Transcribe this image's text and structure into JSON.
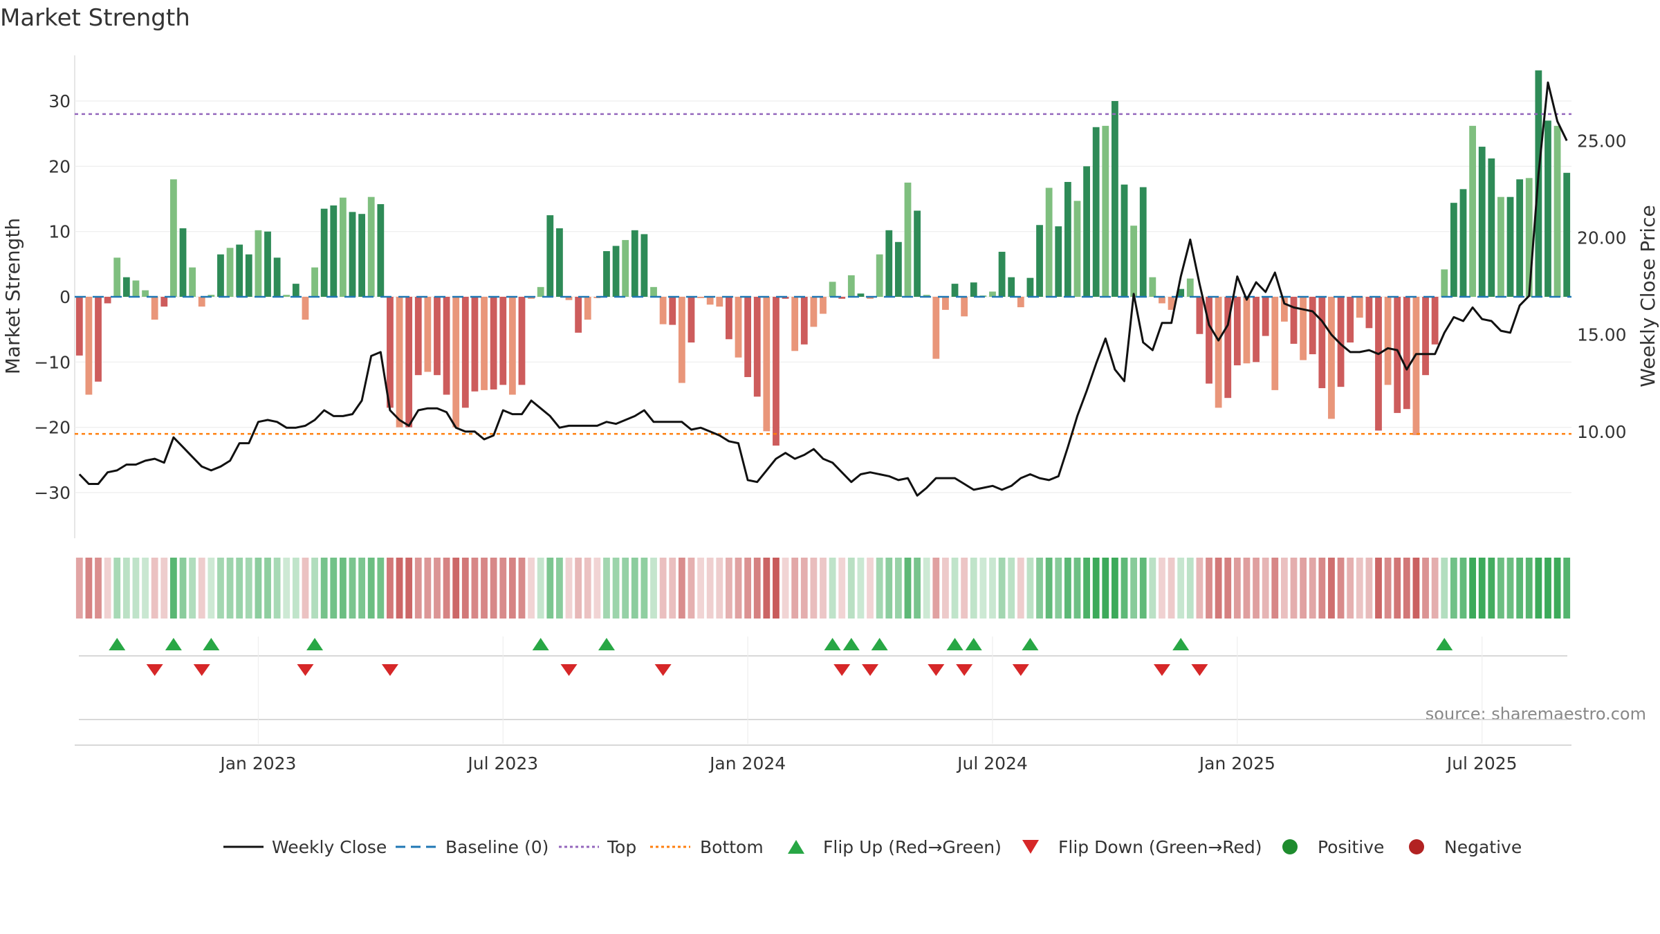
{
  "chart_data": {
    "type": "bar",
    "title": "Market Strength",
    "ylabel": "Market Strength",
    "y2label": "Weekly Close Price",
    "ylim": [
      -37,
      37
    ],
    "y2lim": [
      4.5,
      29.4
    ],
    "yticks": [
      -30,
      -20,
      -10,
      0,
      10,
      20,
      30
    ],
    "ytick_labels": [
      "−30",
      "−20",
      "−10",
      "0",
      "10",
      "20",
      "30"
    ],
    "y2ticks": [
      10,
      15,
      20,
      25
    ],
    "y2tick_labels": [
      "10.00",
      "15.00",
      "20.00",
      "25.00"
    ],
    "top_line": 28,
    "bottom_line": -21,
    "baseline": 0,
    "xticks": [
      {
        "week": 19,
        "label": "Jan 2023"
      },
      {
        "week": 45,
        "label": "Jul 2023"
      },
      {
        "week": 71,
        "label": "Jan 2024"
      },
      {
        "week": 97,
        "label": "Jul 2024"
      },
      {
        "week": 123,
        "label": "Jan 2025"
      },
      {
        "week": 149,
        "label": "Jul 2025"
      }
    ],
    "strength": [
      -9,
      -15,
      -13,
      -1,
      6,
      3,
      2.5,
      1,
      -3.5,
      -1.5,
      18,
      10.5,
      4.5,
      -1.5,
      0.3,
      6.5,
      7.5,
      8,
      6.5,
      10.2,
      10,
      6,
      0.3,
      2,
      -3.5,
      4.5,
      13.5,
      14,
      15.2,
      13,
      12.7,
      15.3,
      14.2,
      -17,
      -20,
      -20,
      -12,
      -11.5,
      -12,
      -15,
      -20,
      -17,
      -14.5,
      -14.3,
      -14.2,
      -13.5,
      -15,
      -13.5,
      -0.3,
      1.5,
      12.5,
      10.5,
      -0.5,
      -5.5,
      -3.5,
      -0.2,
      7,
      7.8,
      8.7,
      10.2,
      9.6,
      1.5,
      -4.2,
      -4.3,
      -13.2,
      -7,
      -0.2,
      -1.2,
      -1.5,
      -6.5,
      -9.3,
      -12.3,
      -15.3,
      -20.6,
      -22.8,
      -0.3,
      -8.3,
      -7.3,
      -4.6,
      -2.6,
      2.3,
      -0.3,
      3.3,
      0.5,
      -0.3,
      6.5,
      10.2,
      8.4,
      17.5,
      13.2,
      0.3,
      -9.5,
      -2,
      2,
      -3,
      2.2,
      0.2,
      0.8,
      6.9,
      3,
      -1.6,
      2.9,
      11,
      16.7,
      10.8,
      17.6,
      14.7,
      20,
      26,
      26.2,
      30,
      17.2,
      10.9,
      16.8,
      3,
      -1,
      -2,
      1.2,
      2.8,
      -5.7,
      -13.3,
      -17,
      -15.5,
      -10.5,
      -10.2,
      -10,
      -6,
      -14.3,
      -3.8,
      -7.2,
      -9.7,
      -8.8,
      -14,
      -18.7,
      -13.8,
      -7,
      -3.2,
      -4.8,
      -20.5,
      -13.5,
      -17.8,
      -17.2,
      -21.2,
      -12,
      -7.3,
      4.2,
      14.4,
      16.5,
      26.2,
      23,
      21.2,
      15.3,
      15.3,
      18,
      18.2,
      34.7,
      27,
      26.2,
      19
    ],
    "weekly_close": [
      7.8,
      7.3,
      7.3,
      7.9,
      8,
      8.3,
      8.3,
      8.5,
      8.6,
      8.4,
      9.7,
      9.2,
      8.7,
      8.2,
      8,
      8.2,
      8.5,
      9.4,
      9.4,
      10.5,
      10.6,
      10.5,
      10.2,
      10.2,
      10.3,
      10.6,
      11.1,
      10.8,
      10.8,
      10.9,
      11.6,
      13.9,
      14.1,
      11.1,
      10.6,
      10.3,
      11.1,
      11.2,
      11.2,
      11,
      10.2,
      10,
      10,
      9.6,
      9.8,
      11.1,
      10.9,
      10.9,
      11.6,
      11.2,
      10.8,
      10.2,
      10.3,
      10.3,
      10.3,
      10.3,
      10.5,
      10.4,
      10.6,
      10.8,
      11.1,
      10.5,
      10.5,
      10.5,
      10.5,
      10.1,
      10.2,
      10,
      9.8,
      9.5,
      9.4,
      7.5,
      7.4,
      8,
      8.6,
      8.9,
      8.6,
      8.8,
      9.1,
      8.6,
      8.4,
      7.9,
      7.4,
      7.8,
      7.9,
      7.8,
      7.7,
      7.5,
      7.6,
      6.7,
      7.1,
      7.6,
      7.6,
      7.6,
      7.3,
      7,
      7.1,
      7.2,
      7,
      7.2,
      7.6,
      7.8,
      7.6,
      7.5,
      7.7,
      9.2,
      10.8,
      12.1,
      13.5,
      14.8,
      13.2,
      12.6,
      17.1,
      14.6,
      14.2,
      15.6,
      15.6,
      18,
      19.9,
      17.6,
      15.5,
      14.7,
      15.5,
      18,
      16.8,
      17.7,
      17.2,
      18.2,
      16.6,
      16.4,
      16.3,
      16.2,
      15.7,
      15,
      14.5,
      14.1,
      14.1,
      14.2,
      14,
      14.3,
      14.2,
      13.2,
      14,
      14,
      14,
      15.1,
      15.9,
      15.7,
      16.4,
      15.8,
      15.7,
      15.2,
      15.1,
      16.5,
      17,
      23.3,
      28,
      26,
      25
    ]
  },
  "legend": {
    "weekly_close": "Weekly Close",
    "baseline": "Baseline (0)",
    "top": "Top",
    "bottom": "Bottom",
    "flip_up": "Flip Up (Red→Green)",
    "flip_down": "Flip Down (Green→Red)",
    "positive": "Positive",
    "negative": "Negative"
  },
  "source": "source: sharemaestro.com",
  "colors": {
    "strong_green": "#2e8b57",
    "light_green": "#7fbf7f",
    "strong_red": "#cd5c5c",
    "light_red": "#e9967a",
    "close_line": "#111111",
    "baseline": "#1f77b4",
    "top_line": "#9467bd",
    "bottom_line": "#ff7f0e",
    "flip_up": "#28a745",
    "flip_down": "#d62728",
    "positive": "#1e8c2e",
    "negative": "#b22222"
  }
}
